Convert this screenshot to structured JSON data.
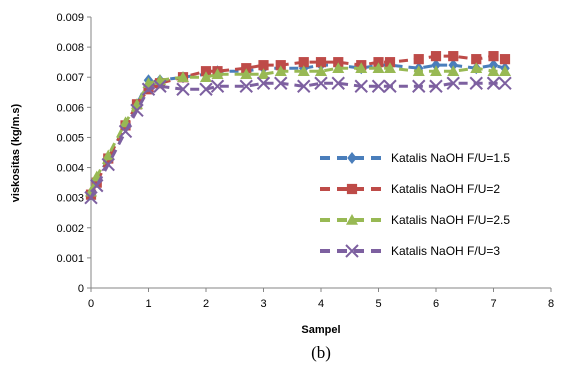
{
  "chart_data": {
    "type": "scatter",
    "xlabel": "Sampel",
    "ylabel": "viskositas (kg/m.s)",
    "caption": "(b)",
    "xlim": [
      0,
      8
    ],
    "ylim": [
      0,
      0.009
    ],
    "xticks": [
      "0",
      "1",
      "2",
      "3",
      "4",
      "5",
      "6",
      "7",
      "8"
    ],
    "yticks": [
      "0",
      "0.001",
      "0.002",
      "0.003",
      "0.004",
      "0.005",
      "0.006",
      "0.007",
      "0.008",
      "0.009"
    ],
    "legend_position": "right",
    "series": [
      {
        "name": "Katalis NaOH F/U=1.5",
        "color": "#4a7ebb",
        "marker": "diamond",
        "x": [
          0,
          0.1,
          0.3,
          0.6,
          0.8,
          1,
          1.2,
          1.6,
          2,
          2.2,
          2.7,
          3,
          3.3,
          3.7,
          4,
          4.3,
          4.7,
          5,
          5.2,
          5.7,
          6,
          6.3,
          6.7,
          7,
          7.2
        ],
        "y": [
          0.0031,
          0.0036,
          0.0043,
          0.0054,
          0.0061,
          0.0069,
          0.0069,
          0.007,
          0.0071,
          0.0072,
          0.0072,
          0.0073,
          0.0073,
          0.0073,
          0.0074,
          0.0074,
          0.0073,
          0.0074,
          0.0074,
          0.0073,
          0.0074,
          0.0074,
          0.0073,
          0.0074,
          0.0073
        ]
      },
      {
        "name": "Katalis NaOH F/U=2",
        "color": "#be4b48",
        "marker": "square",
        "x": [
          0,
          0.1,
          0.3,
          0.6,
          0.8,
          1,
          1.2,
          1.6,
          2,
          2.2,
          2.7,
          3,
          3.3,
          3.7,
          4,
          4.3,
          4.7,
          5,
          5.2,
          5.7,
          6,
          6.3,
          6.7,
          7,
          7.2
        ],
        "y": [
          0.0031,
          0.0035,
          0.0043,
          0.0054,
          0.0061,
          0.0066,
          0.0068,
          0.007,
          0.0072,
          0.0072,
          0.0073,
          0.0074,
          0.0074,
          0.0075,
          0.0075,
          0.0075,
          0.0074,
          0.0075,
          0.0075,
          0.0076,
          0.0077,
          0.0077,
          0.0076,
          0.0077,
          0.0076
        ]
      },
      {
        "name": "Katalis NaOH F/U=2.5",
        "color": "#98b954",
        "marker": "triangle",
        "x": [
          0,
          0.1,
          0.3,
          0.6,
          0.8,
          1,
          1.2,
          1.6,
          2,
          2.2,
          2.7,
          3,
          3.3,
          3.7,
          4,
          4.3,
          4.7,
          5,
          5.2,
          5.7,
          6,
          6.3,
          6.7,
          7,
          7.2
        ],
        "y": [
          0.0032,
          0.0037,
          0.0044,
          0.0055,
          0.0061,
          0.0068,
          0.0069,
          0.007,
          0.007,
          0.0071,
          0.0071,
          0.0071,
          0.0072,
          0.0072,
          0.0072,
          0.0073,
          0.0073,
          0.0073,
          0.0073,
          0.0072,
          0.0072,
          0.0072,
          0.0073,
          0.0072,
          0.0072
        ]
      },
      {
        "name": "Katalis NaOH F/U=3",
        "color": "#7d60a0",
        "marker": "x",
        "x": [
          0,
          0.1,
          0.3,
          0.6,
          0.8,
          1,
          1.2,
          1.6,
          2,
          2.2,
          2.7,
          3,
          3.3,
          3.7,
          4,
          4.3,
          4.7,
          5,
          5.2,
          5.7,
          6,
          6.3,
          6.7,
          7,
          7.2
        ],
        "y": [
          0.003,
          0.0034,
          0.0041,
          0.0052,
          0.0059,
          0.0066,
          0.0067,
          0.0066,
          0.0066,
          0.0067,
          0.0067,
          0.0068,
          0.0068,
          0.0067,
          0.0068,
          0.0068,
          0.0067,
          0.0067,
          0.0067,
          0.0067,
          0.0067,
          0.0068,
          0.0068,
          0.0068,
          0.0068
        ]
      }
    ]
  }
}
